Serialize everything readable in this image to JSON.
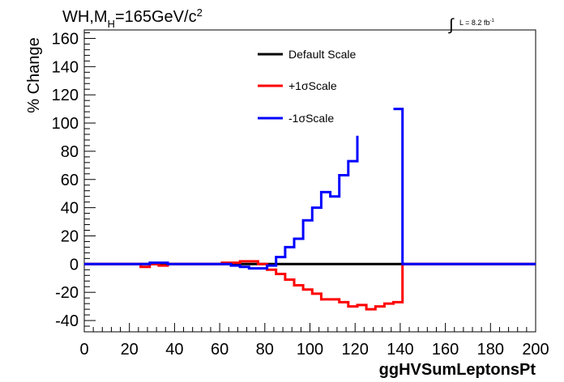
{
  "chart_data": {
    "type": "line",
    "title_parts": {
      "main": "WH,M",
      "sub": "H",
      "rest": "=165GeV/c",
      "sup": "2"
    },
    "lumi_label": {
      "symbol": "∫",
      "text": "L = 8.2 fb",
      "sup": "-1"
    },
    "xlabel": "ggHVSumLeptonsPt",
    "ylabel": "% Change",
    "xlim": [
      0,
      200
    ],
    "ylim": [
      -48,
      166
    ],
    "x_ticks": [
      0,
      20,
      40,
      60,
      80,
      100,
      120,
      140,
      160,
      180,
      200
    ],
    "y_ticks": [
      -40,
      -20,
      0,
      20,
      40,
      60,
      80,
      100,
      120,
      140,
      160
    ],
    "grid": false,
    "legend_position": "top-center",
    "series": [
      {
        "name": "Default Scale",
        "color": "#000000",
        "x": [
          0,
          200
        ],
        "y": [
          0,
          0
        ]
      },
      {
        "name": "+1σScale",
        "color": "#ff0000",
        "x": [
          0,
          25,
          25,
          29,
          29,
          33,
          33,
          37,
          37,
          41,
          41,
          45,
          45,
          49,
          49,
          53,
          53,
          57,
          57,
          61,
          61,
          65,
          65,
          69,
          69,
          73,
          73,
          77,
          77,
          81,
          81,
          85,
          85,
          89,
          89,
          93,
          93,
          97,
          97,
          101,
          101,
          105,
          105,
          109,
          109,
          113,
          113,
          117,
          117,
          121,
          121,
          125,
          125,
          129,
          129,
          133,
          133,
          137,
          137,
          141,
          141,
          200
        ],
        "y": [
          0,
          0,
          -2,
          -2,
          0,
          0,
          -1,
          -1,
          0,
          0,
          0,
          0,
          0,
          0,
          0,
          0,
          0,
          0,
          0,
          0,
          1,
          1,
          1,
          1,
          2,
          2,
          2,
          2,
          0,
          0,
          -4,
          -4,
          -7,
          -7,
          -11,
          -11,
          -15,
          -15,
          -18,
          -18,
          -21,
          -21,
          -25,
          -25,
          -25,
          -25,
          -27,
          -27,
          -30,
          -30,
          -29,
          -29,
          -32,
          -32,
          -30,
          -30,
          -28,
          -28,
          -27,
          -27,
          0,
          0
        ]
      },
      {
        "name": "-1σScale",
        "color": "#0000ff",
        "x": [
          0,
          29,
          29,
          33,
          33,
          37,
          37,
          41,
          41,
          57,
          57,
          61,
          61,
          65,
          65,
          69,
          69,
          73,
          73,
          77,
          77,
          81,
          81,
          85,
          85,
          89,
          89,
          93,
          93,
          97,
          97,
          101,
          101,
          105,
          105,
          109,
          109,
          113,
          113,
          117,
          117,
          121,
          121,
          137,
          137,
          141,
          141,
          200
        ],
        "y": [
          0,
          0,
          1,
          1,
          1,
          1,
          0,
          0,
          0,
          0,
          0,
          0,
          0,
          0,
          -1,
          -1,
          -2,
          -2,
          -3,
          -3,
          -3,
          -3,
          -1,
          -1,
          5,
          5,
          12,
          12,
          18,
          18,
          31,
          31,
          40,
          40,
          51,
          51,
          48,
          48,
          63,
          63,
          73,
          73,
          91,
          null,
          110,
          110,
          0,
          0
        ]
      }
    ]
  }
}
